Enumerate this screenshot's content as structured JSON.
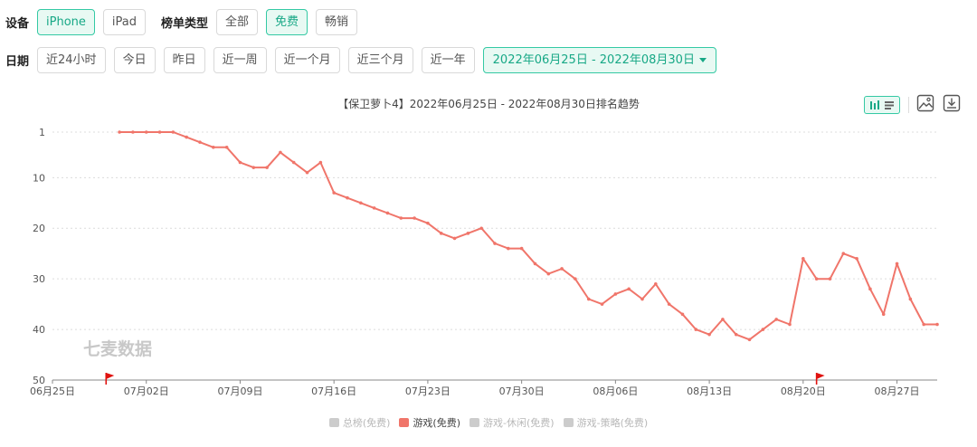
{
  "filters": {
    "device_label": "设备",
    "devices": [
      {
        "label": "iPhone",
        "active": true
      },
      {
        "label": "iPad",
        "active": false
      }
    ],
    "chart_type_label": "榜单类型",
    "chart_types": [
      {
        "label": "全部",
        "active": false
      },
      {
        "label": "免费",
        "active": true
      },
      {
        "label": "畅销",
        "active": false
      }
    ],
    "date_label": "日期",
    "dates": [
      {
        "label": "近24小时"
      },
      {
        "label": "今日"
      },
      {
        "label": "昨日"
      },
      {
        "label": "近一周"
      },
      {
        "label": "近一个月"
      },
      {
        "label": "近三个月"
      },
      {
        "label": "近一年"
      }
    ],
    "date_range": "2022年06月25日 - 2022年08月30日"
  },
  "toolbar": {
    "icons": [
      "bar-line-toggle-icon",
      "image-icon",
      "download-icon"
    ]
  },
  "watermark": "七麦数据",
  "colors": {
    "accent": "#34c9a4",
    "series_active": "#f0756a",
    "series_inactive": "#cccccc",
    "flag": "#e0120f"
  },
  "chart_data": {
    "type": "line",
    "title": "【保卫萝卜4】2022年06月25日 - 2022年08月30日排名趋势",
    "x_tick_labels": [
      "06月25日",
      "07月02日",
      "07月09日",
      "07月16日",
      "07月23日",
      "07月30日",
      "08月06日",
      "08月13日",
      "08月20日",
      "08月27日"
    ],
    "x_range": [
      "2022-06-25",
      "2022-08-30"
    ],
    "y_reversed": true,
    "y_ticks": [
      1,
      10,
      20,
      30,
      40,
      50
    ],
    "ylim": [
      1,
      50
    ],
    "grid": true,
    "series": [
      {
        "name": "游戏(免费)",
        "active": true,
        "x": [
          "2022-06-30",
          "2022-07-01",
          "2022-07-02",
          "2022-07-03",
          "2022-07-04",
          "2022-07-05",
          "2022-07-06",
          "2022-07-07",
          "2022-07-08",
          "2022-07-09",
          "2022-07-10",
          "2022-07-11",
          "2022-07-12",
          "2022-07-13",
          "2022-07-14",
          "2022-07-15",
          "2022-07-16",
          "2022-07-17",
          "2022-07-18",
          "2022-07-19",
          "2022-07-20",
          "2022-07-21",
          "2022-07-22",
          "2022-07-23",
          "2022-07-24",
          "2022-07-25",
          "2022-07-26",
          "2022-07-27",
          "2022-07-28",
          "2022-07-29",
          "2022-07-30",
          "2022-07-31",
          "2022-08-01",
          "2022-08-02",
          "2022-08-03",
          "2022-08-04",
          "2022-08-05",
          "2022-08-06",
          "2022-08-07",
          "2022-08-08",
          "2022-08-09",
          "2022-08-10",
          "2022-08-11",
          "2022-08-12",
          "2022-08-13",
          "2022-08-14",
          "2022-08-15",
          "2022-08-16",
          "2022-08-17",
          "2022-08-18",
          "2022-08-19",
          "2022-08-20",
          "2022-08-21",
          "2022-08-22",
          "2022-08-23",
          "2022-08-24",
          "2022-08-25",
          "2022-08-26",
          "2022-08-27",
          "2022-08-28",
          "2022-08-29",
          "2022-08-30"
        ],
        "values": [
          1,
          1,
          1,
          1,
          1,
          2,
          3,
          4,
          4,
          7,
          8,
          8,
          5,
          7,
          9,
          7,
          13,
          14,
          15,
          16,
          17,
          18,
          18,
          19,
          21,
          22,
          21,
          20,
          23,
          24,
          24,
          27,
          29,
          28,
          30,
          34,
          35,
          33,
          32,
          34,
          31,
          35,
          37,
          40,
          41,
          38,
          41,
          42,
          40,
          38,
          39,
          26,
          30,
          30,
          25,
          26,
          32,
          37,
          27,
          34,
          39,
          39
        ]
      }
    ],
    "legend": [
      {
        "name": "总榜(免费)",
        "active": false
      },
      {
        "name": "游戏(免费)",
        "active": true
      },
      {
        "name": "游戏-休闲(免费)",
        "active": false
      },
      {
        "name": "游戏-策略(免费)",
        "active": false
      }
    ],
    "legend_position": "bottom-center",
    "flags_at": [
      "2022-06-29",
      "2022-08-21"
    ]
  }
}
